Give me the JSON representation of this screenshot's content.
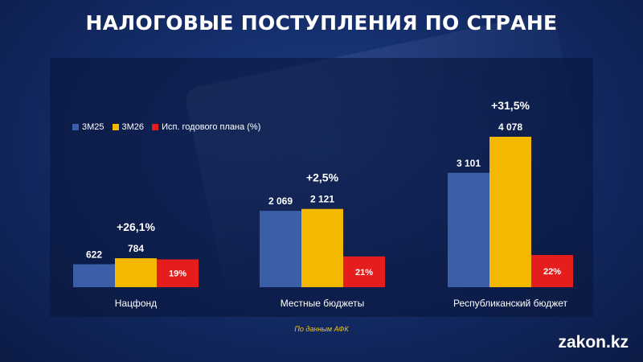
{
  "title": "НАЛОГОВЫЕ ПОСТУПЛЕНИЯ ПО СТРАНЕ",
  "source": "По данным АФК",
  "brand": "zakon.kz",
  "colors": {
    "series_3m25": "#3a5fa8",
    "series_3m26": "#f5b800",
    "series_plan": "#e51d1d"
  },
  "chart_data": {
    "type": "bar",
    "title": "НАЛОГОВЫЕ ПОСТУПЛЕНИЯ ПО СТРАНЕ",
    "categories": [
      "Нацфонд",
      "Местные бюджеты",
      "Республиканский бюджет"
    ],
    "series": [
      {
        "name": "3М25",
        "values": [
          622,
          2069,
          3101
        ],
        "labels": [
          "622",
          "2 069",
          "3 101"
        ]
      },
      {
        "name": "3М26",
        "values": [
          784,
          2121,
          4078
        ],
        "labels": [
          "784",
          "2 121",
          "4 078"
        ]
      },
      {
        "name": "Исп. годового плана (%)",
        "values": [
          19,
          21,
          22
        ],
        "labels": [
          "19%",
          "21%",
          "22%"
        ]
      }
    ],
    "growth_labels": [
      "+26,1%",
      "+2,5%",
      "+31,5%"
    ],
    "legend": {
      "position": "top-left"
    },
    "grid": false
  }
}
